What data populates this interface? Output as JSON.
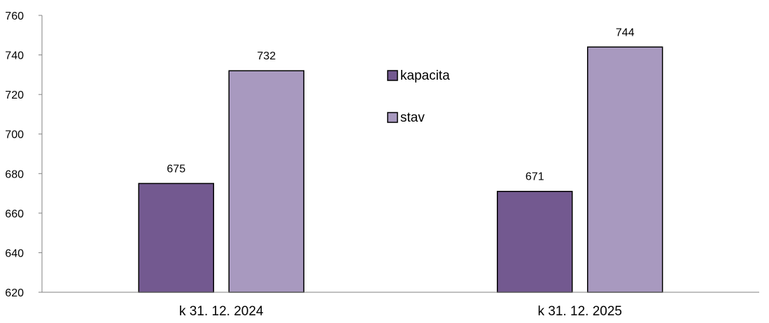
{
  "chart_data": {
    "type": "bar",
    "categories": [
      "k 31. 12. 2024",
      "k 31. 12. 2025"
    ],
    "series": [
      {
        "name": "kapacita",
        "values": [
          675,
          671
        ],
        "color": "#735990"
      },
      {
        "name": "stav",
        "values": [
          732,
          744
        ],
        "color": "#A899BF"
      }
    ],
    "ylim": [
      620,
      760
    ],
    "yticks": [
      620,
      640,
      660,
      680,
      700,
      720,
      740,
      760
    ],
    "grid": false,
    "legend_position": "center-top",
    "axis_color": "#808080",
    "bar_border_color": "#000000"
  }
}
